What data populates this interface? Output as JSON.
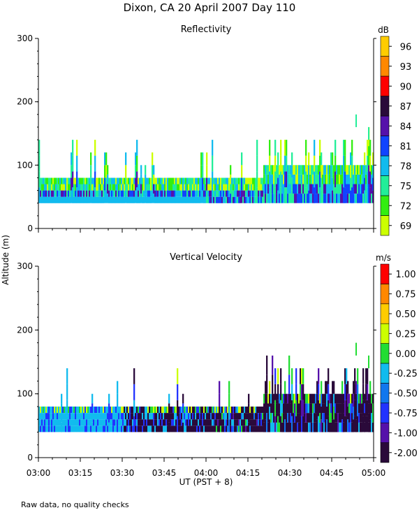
{
  "title": "Dixon, CA 20 April 2007  Day 110",
  "footnote": "Raw data, no quality checks",
  "y_axis_label": "Altitude (m)",
  "x_axis_label": "UT  (PST + 8)",
  "x_ticks": [
    "03:00",
    "03:15",
    "03:30",
    "03:45",
    "04:00",
    "04:15",
    "04:30",
    "04:45",
    "05:00"
  ],
  "x_range_minutes": [
    0,
    120
  ],
  "chart_data": [
    {
      "type": "heatmap",
      "title": "Reflectivity",
      "units": "dB",
      "ylim": [
        0,
        300
      ],
      "y_ticks": [
        0,
        100,
        200,
        300
      ],
      "colorbar": {
        "levels": [
          69,
          72,
          75,
          78,
          81,
          84,
          87,
          90,
          93,
          96
        ],
        "labels": [
          "69",
          "72",
          "75",
          "78",
          "81",
          "84",
          "87",
          "90",
          "93",
          "96"
        ],
        "colors": [
          "#ccff00",
          "#33ee11",
          "#22ee99",
          "#11bbee",
          "#1144ff",
          "#5511aa",
          "#2a0a3a",
          "#ff0000",
          "#ff8800",
          "#ffcc00"
        ]
      },
      "data_base_m": 40,
      "data_top_profile": {
        "time_minutes": [
          0,
          10,
          20,
          30,
          40,
          50,
          60,
          70,
          80,
          90,
          100,
          108,
          115,
          119
        ],
        "top_m": [
          80,
          80,
          80,
          80,
          80,
          80,
          80,
          80,
          100,
          100,
          100,
          100,
          100,
          100
        ]
      },
      "max_echo_m": 180
    },
    {
      "type": "heatmap",
      "title": "Vertical Velocity",
      "units": "m/s",
      "ylim": [
        0,
        300
      ],
      "y_ticks": [
        0,
        100,
        200,
        300
      ],
      "colorbar": {
        "levels": [
          -2.0,
          -1.0,
          -0.75,
          -0.5,
          -0.25,
          0.0,
          0.25,
          0.5,
          0.75,
          1.0
        ],
        "labels": [
          "-2.00",
          "-1.00",
          "-0.75",
          "-0.50",
          "-0.25",
          "0.00",
          "0.25",
          "0.50",
          "0.75",
          "1.00"
        ],
        "colors": [
          "#2a0a3a",
          "#5511aa",
          "#2233ff",
          "#1177ee",
          "#11bbee",
          "#22dd33",
          "#ccff00",
          "#ffcc00",
          "#ff8800",
          "#ff0000"
        ]
      },
      "data_base_m": 40,
      "data_top_profile": {
        "time_minutes": [
          0,
          10,
          20,
          30,
          40,
          50,
          60,
          70,
          80,
          90,
          100,
          108,
          115,
          119
        ],
        "top_m": [
          80,
          80,
          80,
          80,
          80,
          80,
          80,
          80,
          100,
          100,
          100,
          100,
          100,
          100
        ]
      },
      "max_echo_m": 180
    }
  ]
}
